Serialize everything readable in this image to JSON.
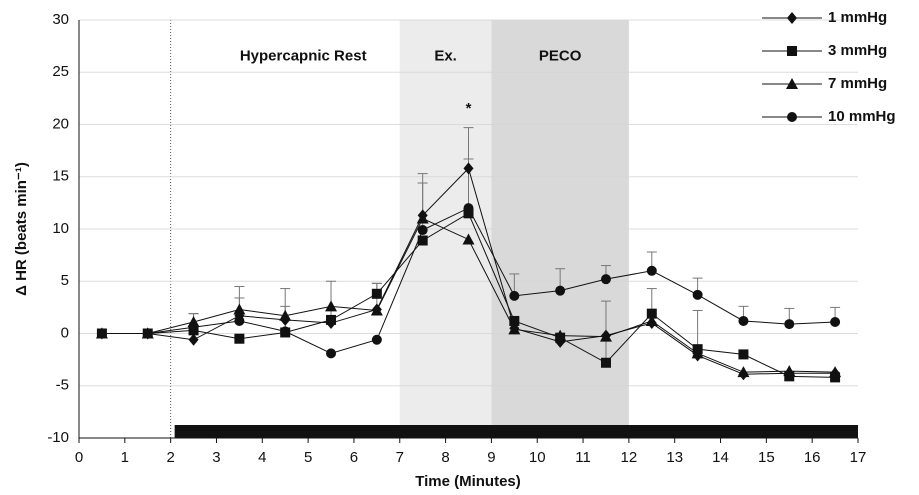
{
  "chart_data": {
    "type": "line",
    "xlabel": "Time (Minutes)",
    "ylabel": "Δ HR (beats min⁻¹)",
    "x": [
      0.5,
      1.5,
      2.5,
      3.5,
      4.5,
      5.5,
      6.5,
      7.5,
      8.5,
      9.5,
      10.5,
      11.5,
      12.5,
      13.5,
      14.5,
      15.5,
      16.5
    ],
    "series": [
      {
        "name": "1 mmHg",
        "marker": "diamond",
        "color": "#111111",
        "values": [
          0,
          0,
          -0.6,
          1.7,
          1.3,
          1.0,
          2.3,
          11.3,
          15.8,
          0.5,
          -0.8,
          -0.2,
          1.0,
          -2.1,
          -3.9,
          -3.8,
          -3.8
        ],
        "errors": [
          null,
          null,
          2.5,
          1.7,
          3.0,
          null,
          2.5,
          4.0,
          3.9,
          null,
          null,
          null,
          null,
          null,
          null,
          null,
          null
        ]
      },
      {
        "name": "3 mmHg",
        "marker": "square",
        "color": "#111111",
        "values": [
          0,
          0,
          0.3,
          -0.5,
          0.1,
          1.3,
          3.8,
          8.9,
          11.5,
          1.2,
          -0.4,
          -2.8,
          1.9,
          -1.5,
          -2.0,
          -4.1,
          -4.2
        ],
        "errors": [
          null,
          null,
          null,
          null,
          null,
          3.7,
          1.0,
          null,
          null,
          null,
          null,
          5.9,
          2.4,
          3.7,
          null,
          null,
          null
        ]
      },
      {
        "name": "7 mmHg",
        "marker": "triangle",
        "color": "#111111",
        "values": [
          0,
          0,
          1.1,
          2.3,
          1.7,
          2.6,
          2.2,
          11.0,
          9.0,
          0.4,
          -0.2,
          -0.3,
          1.2,
          -1.9,
          -3.7,
          -3.6,
          -3.7
        ]
      },
      {
        "name": "10 mmHg",
        "marker": "circle",
        "color": "#111111",
        "values": [
          0,
          0,
          0.6,
          1.2,
          0.2,
          -1.9,
          -0.6,
          9.9,
          12.0,
          3.6,
          4.1,
          5.2,
          6.0,
          3.7,
          1.2,
          0.9,
          1.1
        ],
        "errors": [
          null,
          null,
          1.3,
          3.3,
          2.4,
          null,
          null,
          4.5,
          4.7,
          2.1,
          2.1,
          1.3,
          1.8,
          1.6,
          1.4,
          1.5,
          1.4
        ]
      }
    ],
    "regions": [
      {
        "label": "Hypercapnic Rest",
        "start": 2,
        "end": 7,
        "color": null
      },
      {
        "label": "Ex.",
        "start": 7,
        "end": 9,
        "color": "#ececec"
      },
      {
        "label": "PECO",
        "start": 9,
        "end": 12,
        "color": "#d9d9d9"
      }
    ],
    "protocol_bar": [
      2,
      17
    ],
    "annotations": [
      {
        "text": "*",
        "x": 8.5,
        "y": 21.5
      }
    ],
    "xlim": [
      0,
      17
    ],
    "xticks": [
      0,
      1,
      2,
      3,
      4,
      5,
      6,
      7,
      8,
      9,
      10,
      11,
      12,
      13,
      14,
      15,
      16,
      17
    ],
    "ylim": [
      -10,
      30
    ],
    "yticks": [
      -10,
      -5,
      0,
      5,
      10,
      15,
      20,
      25,
      30
    ],
    "grid": true,
    "legend": "top-right"
  }
}
